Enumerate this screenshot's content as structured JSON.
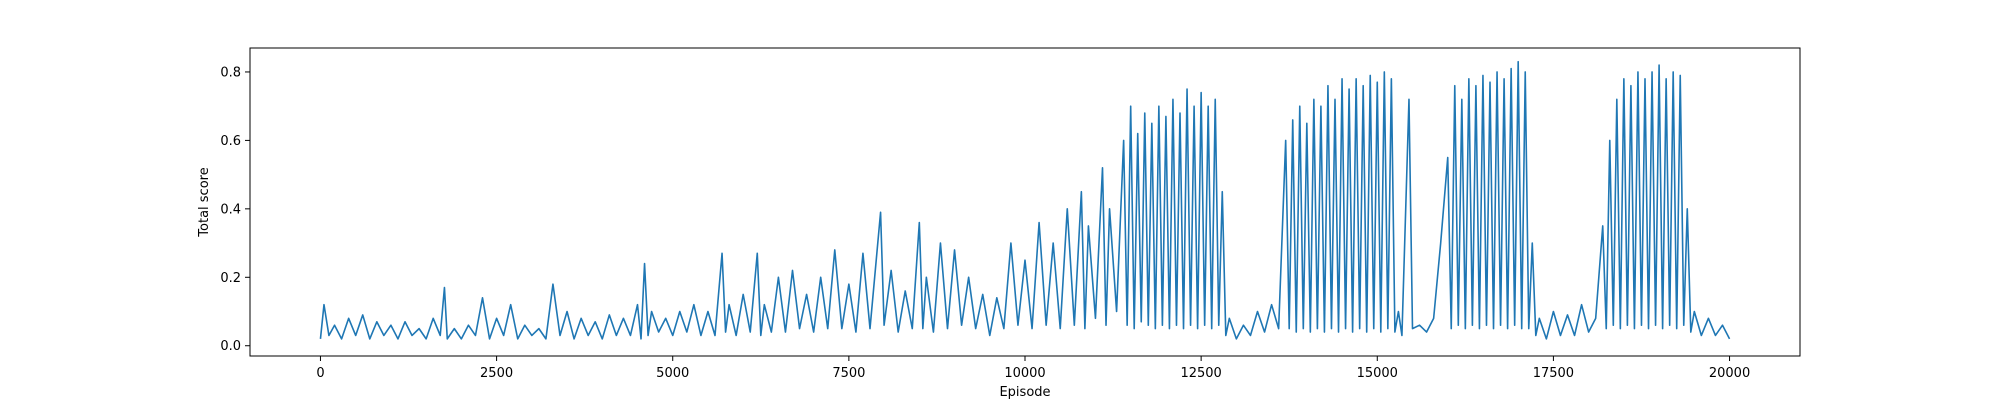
{
  "chart_data": {
    "type": "line",
    "title": "",
    "xlabel": "Episode",
    "ylabel": "Total score",
    "xlim": [
      -1000,
      21000
    ],
    "ylim": [
      -0.03,
      0.87
    ],
    "grid": false,
    "legend": "none",
    "x_ticks": [
      0,
      2500,
      5000,
      7500,
      10000,
      12500,
      15000,
      17500,
      20000
    ],
    "x_tick_labels": [
      "0",
      "2500",
      "5000",
      "7500",
      "10000",
      "12500",
      "15000",
      "17500",
      "20000"
    ],
    "y_ticks": [
      0.0,
      0.2,
      0.4,
      0.6,
      0.8
    ],
    "y_tick_labels": [
      "0.0",
      "0.2",
      "0.4",
      "0.6",
      "0.8"
    ],
    "series": [
      {
        "color": "#1f77b4",
        "points": [
          [
            0,
            0.02
          ],
          [
            50,
            0.12
          ],
          [
            120,
            0.03
          ],
          [
            200,
            0.06
          ],
          [
            300,
            0.02
          ],
          [
            400,
            0.08
          ],
          [
            500,
            0.03
          ],
          [
            600,
            0.09
          ],
          [
            700,
            0.02
          ],
          [
            800,
            0.07
          ],
          [
            900,
            0.03
          ],
          [
            1000,
            0.06
          ],
          [
            1100,
            0.02
          ],
          [
            1200,
            0.07
          ],
          [
            1300,
            0.03
          ],
          [
            1400,
            0.05
          ],
          [
            1500,
            0.02
          ],
          [
            1600,
            0.08
          ],
          [
            1700,
            0.03
          ],
          [
            1760,
            0.17
          ],
          [
            1800,
            0.02
          ],
          [
            1900,
            0.05
          ],
          [
            2000,
            0.02
          ],
          [
            2100,
            0.06
          ],
          [
            2200,
            0.03
          ],
          [
            2300,
            0.14
          ],
          [
            2400,
            0.02
          ],
          [
            2500,
            0.08
          ],
          [
            2600,
            0.03
          ],
          [
            2700,
            0.12
          ],
          [
            2800,
            0.02
          ],
          [
            2900,
            0.06
          ],
          [
            3000,
            0.03
          ],
          [
            3100,
            0.05
          ],
          [
            3200,
            0.02
          ],
          [
            3300,
            0.18
          ],
          [
            3400,
            0.03
          ],
          [
            3500,
            0.1
          ],
          [
            3600,
            0.02
          ],
          [
            3700,
            0.08
          ],
          [
            3800,
            0.03
          ],
          [
            3900,
            0.07
          ],
          [
            4000,
            0.02
          ],
          [
            4100,
            0.09
          ],
          [
            4200,
            0.03
          ],
          [
            4300,
            0.08
          ],
          [
            4400,
            0.03
          ],
          [
            4500,
            0.12
          ],
          [
            4550,
            0.02
          ],
          [
            4600,
            0.24
          ],
          [
            4650,
            0.03
          ],
          [
            4700,
            0.1
          ],
          [
            4800,
            0.04
          ],
          [
            4900,
            0.08
          ],
          [
            5000,
            0.03
          ],
          [
            5100,
            0.1
          ],
          [
            5200,
            0.04
          ],
          [
            5300,
            0.12
          ],
          [
            5400,
            0.03
          ],
          [
            5500,
            0.1
          ],
          [
            5600,
            0.03
          ],
          [
            5700,
            0.27
          ],
          [
            5750,
            0.04
          ],
          [
            5800,
            0.12
          ],
          [
            5900,
            0.03
          ],
          [
            6000,
            0.15
          ],
          [
            6100,
            0.04
          ],
          [
            6200,
            0.27
          ],
          [
            6250,
            0.03
          ],
          [
            6300,
            0.12
          ],
          [
            6400,
            0.04
          ],
          [
            6500,
            0.2
          ],
          [
            6600,
            0.04
          ],
          [
            6700,
            0.22
          ],
          [
            6800,
            0.05
          ],
          [
            6900,
            0.15
          ],
          [
            7000,
            0.04
          ],
          [
            7100,
            0.2
          ],
          [
            7200,
            0.05
          ],
          [
            7300,
            0.28
          ],
          [
            7400,
            0.05
          ],
          [
            7500,
            0.18
          ],
          [
            7600,
            0.04
          ],
          [
            7700,
            0.27
          ],
          [
            7800,
            0.05
          ],
          [
            7950,
            0.39
          ],
          [
            8000,
            0.06
          ],
          [
            8100,
            0.22
          ],
          [
            8200,
            0.04
          ],
          [
            8300,
            0.16
          ],
          [
            8400,
            0.05
          ],
          [
            8500,
            0.36
          ],
          [
            8550,
            0.05
          ],
          [
            8600,
            0.2
          ],
          [
            8700,
            0.04
          ],
          [
            8800,
            0.3
          ],
          [
            8900,
            0.05
          ],
          [
            9000,
            0.28
          ],
          [
            9100,
            0.06
          ],
          [
            9200,
            0.2
          ],
          [
            9300,
            0.05
          ],
          [
            9400,
            0.15
          ],
          [
            9500,
            0.03
          ],
          [
            9600,
            0.14
          ],
          [
            9700,
            0.05
          ],
          [
            9800,
            0.3
          ],
          [
            9900,
            0.06
          ],
          [
            10000,
            0.25
          ],
          [
            10100,
            0.05
          ],
          [
            10200,
            0.36
          ],
          [
            10300,
            0.06
          ],
          [
            10400,
            0.3
          ],
          [
            10500,
            0.05
          ],
          [
            10600,
            0.4
          ],
          [
            10700,
            0.06
          ],
          [
            10800,
            0.45
          ],
          [
            10850,
            0.05
          ],
          [
            10900,
            0.35
          ],
          [
            11000,
            0.08
          ],
          [
            11100,
            0.52
          ],
          [
            11150,
            0.06
          ],
          [
            11200,
            0.4
          ],
          [
            11300,
            0.1
          ],
          [
            11400,
            0.6
          ],
          [
            11450,
            0.06
          ],
          [
            11500,
            0.7
          ],
          [
            11550,
            0.05
          ],
          [
            11600,
            0.62
          ],
          [
            11650,
            0.07
          ],
          [
            11700,
            0.68
          ],
          [
            11750,
            0.06
          ],
          [
            11800,
            0.65
          ],
          [
            11850,
            0.05
          ],
          [
            11900,
            0.7
          ],
          [
            11950,
            0.06
          ],
          [
            12000,
            0.67
          ],
          [
            12050,
            0.05
          ],
          [
            12100,
            0.72
          ],
          [
            12150,
            0.06
          ],
          [
            12200,
            0.68
          ],
          [
            12250,
            0.05
          ],
          [
            12300,
            0.75
          ],
          [
            12350,
            0.06
          ],
          [
            12400,
            0.7
          ],
          [
            12450,
            0.05
          ],
          [
            12500,
            0.74
          ],
          [
            12550,
            0.06
          ],
          [
            12600,
            0.7
          ],
          [
            12650,
            0.05
          ],
          [
            12700,
            0.72
          ],
          [
            12750,
            0.06
          ],
          [
            12800,
            0.45
          ],
          [
            12850,
            0.03
          ],
          [
            12900,
            0.08
          ],
          [
            13000,
            0.02
          ],
          [
            13100,
            0.06
          ],
          [
            13200,
            0.03
          ],
          [
            13300,
            0.1
          ],
          [
            13400,
            0.04
          ],
          [
            13500,
            0.12
          ],
          [
            13600,
            0.05
          ],
          [
            13700,
            0.6
          ],
          [
            13750,
            0.05
          ],
          [
            13800,
            0.66
          ],
          [
            13850,
            0.04
          ],
          [
            13900,
            0.7
          ],
          [
            13950,
            0.05
          ],
          [
            14000,
            0.65
          ],
          [
            14050,
            0.04
          ],
          [
            14100,
            0.72
          ],
          [
            14150,
            0.05
          ],
          [
            14200,
            0.7
          ],
          [
            14250,
            0.04
          ],
          [
            14300,
            0.76
          ],
          [
            14350,
            0.05
          ],
          [
            14400,
            0.72
          ],
          [
            14450,
            0.04
          ],
          [
            14500,
            0.78
          ],
          [
            14550,
            0.05
          ],
          [
            14600,
            0.75
          ],
          [
            14650,
            0.04
          ],
          [
            14700,
            0.78
          ],
          [
            14750,
            0.05
          ],
          [
            14800,
            0.76
          ],
          [
            14850,
            0.04
          ],
          [
            14900,
            0.79
          ],
          [
            14950,
            0.05
          ],
          [
            15000,
            0.77
          ],
          [
            15050,
            0.04
          ],
          [
            15100,
            0.8
          ],
          [
            15150,
            0.05
          ],
          [
            15200,
            0.78
          ],
          [
            15250,
            0.04
          ],
          [
            15300,
            0.1
          ],
          [
            15350,
            0.03
          ],
          [
            15450,
            0.72
          ],
          [
            15500,
            0.05
          ],
          [
            15600,
            0.06
          ],
          [
            15700,
            0.04
          ],
          [
            15800,
            0.08
          ],
          [
            15900,
            0.3
          ],
          [
            16000,
            0.55
          ],
          [
            16050,
            0.05
          ],
          [
            16100,
            0.76
          ],
          [
            16150,
            0.06
          ],
          [
            16200,
            0.72
          ],
          [
            16250,
            0.05
          ],
          [
            16300,
            0.78
          ],
          [
            16350,
            0.06
          ],
          [
            16400,
            0.76
          ],
          [
            16450,
            0.05
          ],
          [
            16500,
            0.79
          ],
          [
            16550,
            0.06
          ],
          [
            16600,
            0.77
          ],
          [
            16650,
            0.05
          ],
          [
            16700,
            0.8
          ],
          [
            16750,
            0.06
          ],
          [
            16800,
            0.78
          ],
          [
            16850,
            0.05
          ],
          [
            16900,
            0.81
          ],
          [
            16950,
            0.06
          ],
          [
            17000,
            0.83
          ],
          [
            17050,
            0.05
          ],
          [
            17100,
            0.8
          ],
          [
            17150,
            0.05
          ],
          [
            17200,
            0.3
          ],
          [
            17250,
            0.03
          ],
          [
            17300,
            0.08
          ],
          [
            17400,
            0.02
          ],
          [
            17500,
            0.1
          ],
          [
            17600,
            0.03
          ],
          [
            17700,
            0.09
          ],
          [
            17800,
            0.03
          ],
          [
            17900,
            0.12
          ],
          [
            18000,
            0.04
          ],
          [
            18100,
            0.08
          ],
          [
            18200,
            0.35
          ],
          [
            18250,
            0.05
          ],
          [
            18300,
            0.6
          ],
          [
            18350,
            0.06
          ],
          [
            18400,
            0.72
          ],
          [
            18450,
            0.05
          ],
          [
            18500,
            0.78
          ],
          [
            18550,
            0.06
          ],
          [
            18600,
            0.76
          ],
          [
            18650,
            0.05
          ],
          [
            18700,
            0.8
          ],
          [
            18750,
            0.06
          ],
          [
            18800,
            0.78
          ],
          [
            18850,
            0.05
          ],
          [
            18900,
            0.8
          ],
          [
            18950,
            0.06
          ],
          [
            19000,
            0.82
          ],
          [
            19050,
            0.05
          ],
          [
            19100,
            0.78
          ],
          [
            19150,
            0.06
          ],
          [
            19200,
            0.8
          ],
          [
            19250,
            0.05
          ],
          [
            19300,
            0.79
          ],
          [
            19350,
            0.06
          ],
          [
            19400,
            0.4
          ],
          [
            19450,
            0.04
          ],
          [
            19500,
            0.1
          ],
          [
            19600,
            0.03
          ],
          [
            19700,
            0.08
          ],
          [
            19800,
            0.03
          ],
          [
            19900,
            0.06
          ],
          [
            20000,
            0.02
          ]
        ]
      }
    ]
  }
}
